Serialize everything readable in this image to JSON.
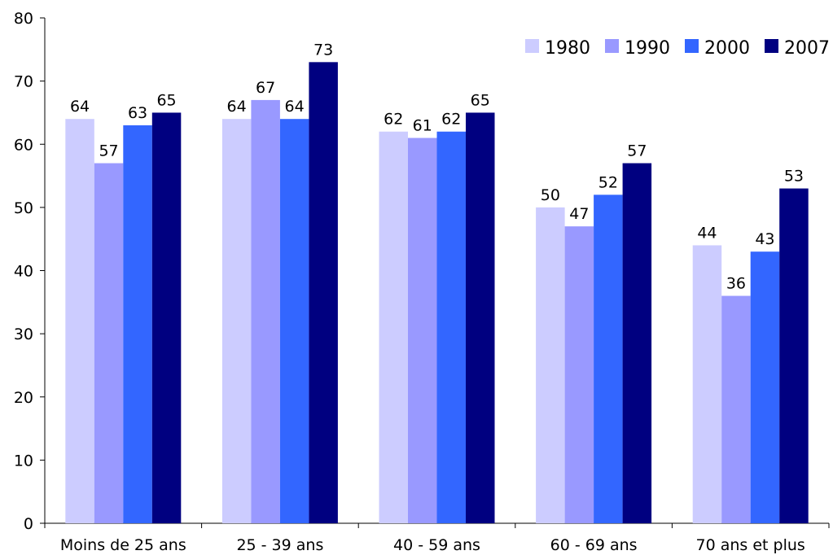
{
  "chart_data": {
    "type": "bar",
    "title": "",
    "xlabel": "",
    "ylabel": "",
    "ylim": [
      0,
      80
    ],
    "yticks": [
      "0",
      "10",
      "20",
      "30",
      "40",
      "50",
      "60",
      "70",
      "80"
    ],
    "grid": false,
    "legend_position": "top-right",
    "categories": [
      "Moins de 25 ans",
      "25 - 39 ans",
      "40 - 59 ans",
      "60 - 69 ans",
      "70 ans et plus"
    ],
    "series": [
      {
        "name": "1980",
        "color": "#ccccff",
        "values": [
          64,
          64,
          62,
          50,
          44
        ]
      },
      {
        "name": "1990",
        "color": "#9999ff",
        "values": [
          57,
          67,
          61,
          47,
          36
        ]
      },
      {
        "name": "2000",
        "color": "#3366ff",
        "values": [
          63,
          64,
          62,
          52,
          43
        ]
      },
      {
        "name": "2007",
        "color": "#000080",
        "values": [
          65,
          73,
          65,
          57,
          53
        ]
      }
    ]
  }
}
